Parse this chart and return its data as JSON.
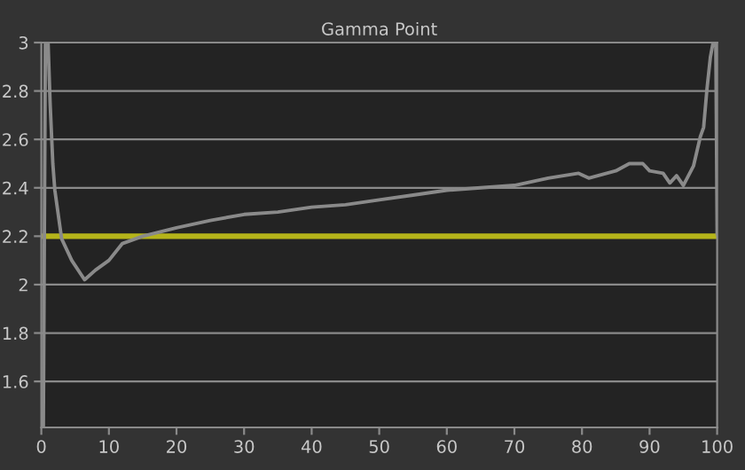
{
  "chart_data": {
    "type": "line",
    "title": "Gamma Point",
    "x": [
      0.3,
      0.6,
      1.0,
      1.3,
      1.7,
      2,
      3,
      4.5,
      6.4,
      8,
      10,
      12,
      15,
      20,
      25,
      30,
      35,
      40,
      45,
      50,
      55,
      60,
      65,
      70,
      75,
      79.5,
      81,
      85,
      87,
      89,
      90,
      92,
      93,
      94,
      95,
      96.5,
      97.5,
      98,
      98.5,
      99,
      99.4,
      99.8,
      100
    ],
    "series": [
      {
        "color": "#8a8a8a",
        "values": [
          1.41,
          3.0,
          3.0,
          2.75,
          2.5,
          2.39,
          2.19,
          2.1,
          2.02,
          2.06,
          2.1,
          2.17,
          2.2,
          2.235,
          2.265,
          2.29,
          2.3,
          2.32,
          2.33,
          2.35,
          2.37,
          2.39,
          2.4,
          2.41,
          2.44,
          2.46,
          2.44,
          2.47,
          2.5,
          2.5,
          2.47,
          2.46,
          2.42,
          2.45,
          2.41,
          2.49,
          2.61,
          2.65,
          2.81,
          2.94,
          3.0,
          3.0,
          2.21
        ]
      }
    ],
    "xlim": [
      0,
      100
    ],
    "ylim": [
      1.41,
      3
    ],
    "xticks": [
      0,
      10,
      20,
      30,
      40,
      50,
      60,
      70,
      80,
      90,
      100
    ],
    "yticks": [
      1.6,
      1.8,
      2,
      2.2,
      2.4,
      2.6,
      2.8,
      3
    ],
    "grid": "y",
    "marker": "none",
    "line_style": "solid",
    "ref_lines": [
      {
        "axis": "y",
        "value": 2.2,
        "color": "#b5b41a"
      }
    ]
  }
}
